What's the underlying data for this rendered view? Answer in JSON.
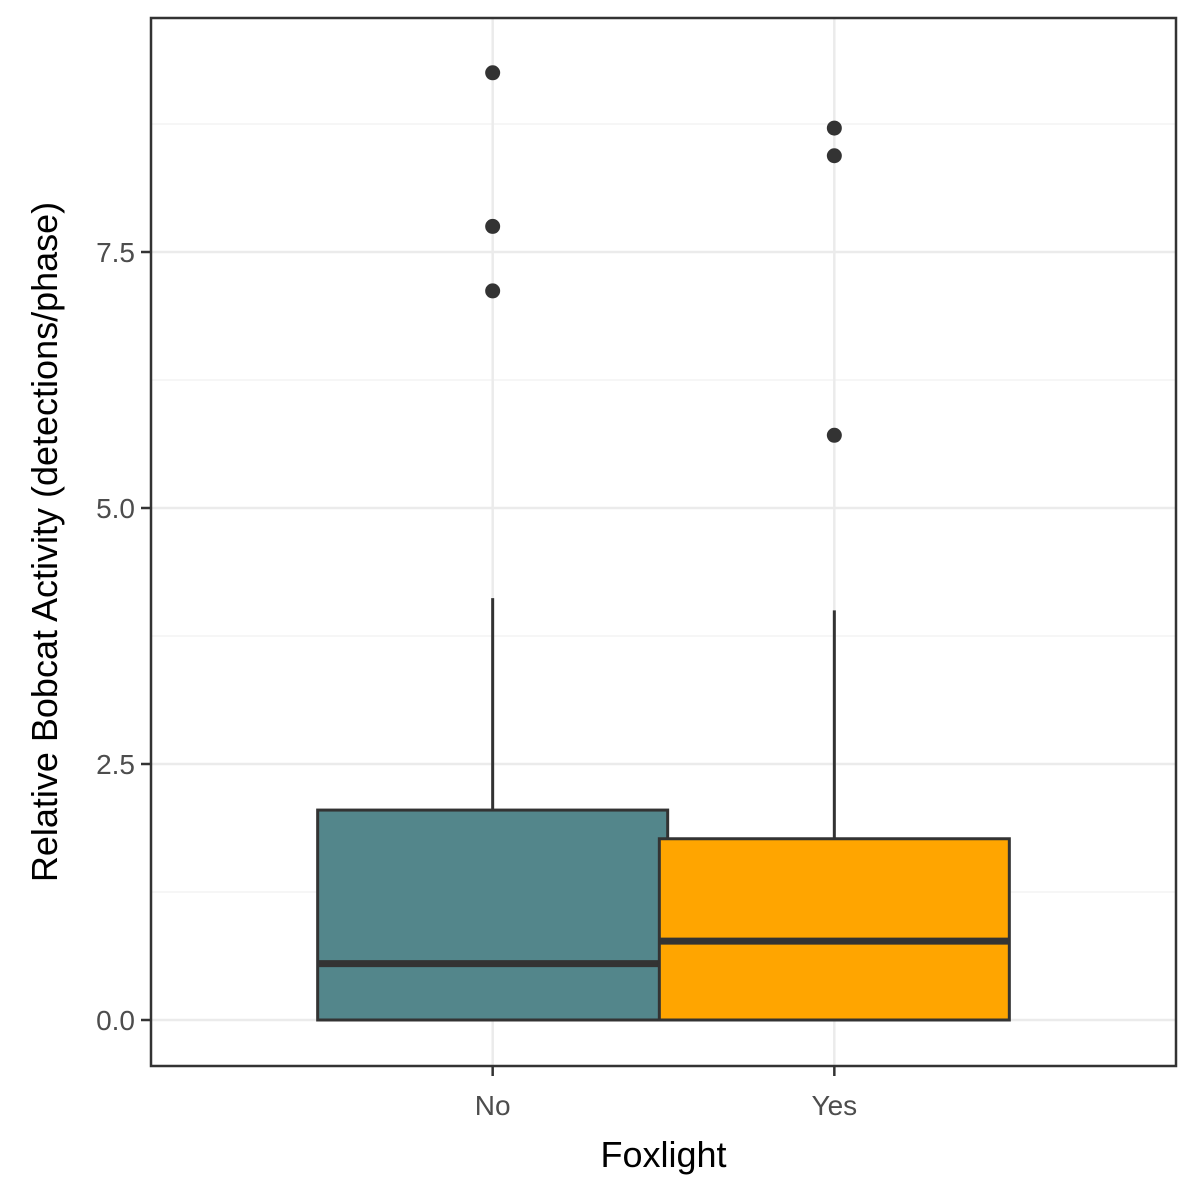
{
  "chart_data": {
    "type": "boxplot",
    "title": "",
    "xlabel": "Foxlight",
    "ylabel": "Relative Bobcat Activity (detections/phase)",
    "categories": [
      "No",
      "Yes"
    ],
    "ylim": [
      -0.45,
      9.65
    ],
    "yticks": [
      0.0,
      2.5,
      5.0,
      7.5
    ],
    "ytick_labels": [
      "0.0",
      "2.5",
      "5.0",
      "7.5"
    ],
    "grid": true,
    "legend": "none",
    "boxes": [
      {
        "category": "No",
        "fill": "#53868B",
        "whisker_low": 0.0,
        "q1": 0.0,
        "median": 0.55,
        "q3": 2.05,
        "whisker_high": 4.12,
        "outliers": [
          9.25,
          7.75,
          7.12
        ]
      },
      {
        "category": "Yes",
        "fill": "#FFA500",
        "whisker_low": 0.0,
        "q1": 0.0,
        "median": 0.77,
        "q3": 1.77,
        "whisker_high": 4.0,
        "outliers": [
          8.71,
          8.44,
          5.71
        ]
      }
    ],
    "colors": {
      "panel_border": "#333333",
      "grid_major": "#EBEBEB",
      "grid_minor": "#F4F4F4",
      "box_line": "#333333",
      "outlier": "#333333"
    }
  }
}
